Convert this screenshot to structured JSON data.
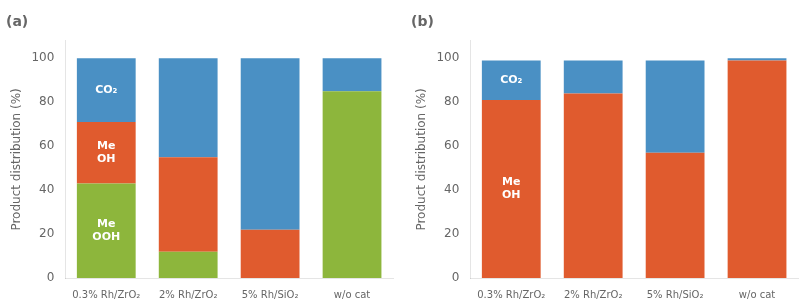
{
  "chart_data": [
    {
      "type": "bar",
      "title": "(a)",
      "categories": [
        "0.3% Rh/ZrO₂",
        "2% Rh/ZrO₂",
        "5% Rh/SiO₂",
        "w/o cat"
      ],
      "series": [
        {
          "name": "MeOOH",
          "color": "#8db63c",
          "values": [
            43,
            12,
            0,
            85
          ]
        },
        {
          "name": "MeOH",
          "color": "#e05b2e",
          "values": [
            28,
            43,
            22,
            0
          ]
        },
        {
          "name": "CO₂",
          "color": "#4a90c4",
          "values": [
            29,
            45,
            78,
            15
          ]
        }
      ],
      "ylabel": "Product distribution (%)",
      "ylim": [
        0,
        108
      ],
      "yticks": [
        0,
        20,
        40,
        60,
        80,
        100
      ],
      "stacked": true,
      "grid": false,
      "annotations": [
        {
          "text": "Me\nOOH",
          "category": "0.3% Rh/ZrO₂",
          "series": "MeOOH"
        },
        {
          "text": "Me\nOH",
          "category": "0.3% Rh/ZrO₂",
          "series": "MeOH"
        },
        {
          "text": "CO₂",
          "category": "0.3% Rh/ZrO₂",
          "series": "CO₂"
        }
      ]
    },
    {
      "type": "bar",
      "title": "(b)",
      "categories": [
        "0.3% Rh/ZrO₂",
        "2% Rh/ZrO₂",
        "5% Rh/SiO₂",
        "w/o cat"
      ],
      "series": [
        {
          "name": "MeOH",
          "color": "#e05b2e",
          "values": [
            81,
            84,
            57,
            99
          ]
        },
        {
          "name": "CO₂",
          "color": "#4a90c4",
          "values": [
            18,
            15,
            42,
            1
          ]
        }
      ],
      "ylabel": "Product distribution (%)",
      "ylim": [
        0,
        108
      ],
      "yticks": [
        0,
        20,
        40,
        60,
        80,
        100
      ],
      "stacked": true,
      "grid": false,
      "annotations": [
        {
          "text": "Me\nOH",
          "category": "0.3% Rh/ZrO₂",
          "series": "MeOH"
        },
        {
          "text": "CO₂",
          "category": "0.3% Rh/ZrO₂",
          "series": "CO₂"
        }
      ]
    }
  ]
}
